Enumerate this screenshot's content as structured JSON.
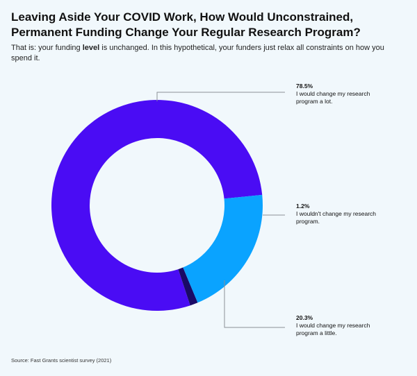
{
  "title": "Leaving Aside Your COVID Work, How Would Unconstrained, Permanent Funding Change Your Regular Research Program?",
  "subtitle": {
    "before": "That is: your funding ",
    "bold": "level",
    "after": " is unchanged. In this hypothetical, your funders just relax all constraints on how you spend it."
  },
  "source": "Source: Fast Grants scientist survey (2021)",
  "chart_data": {
    "type": "pie",
    "donut": true,
    "slices": [
      {
        "label": "I would change my research program a lot.",
        "value": 78.5,
        "value_label": "78.5%",
        "color": "#4a0cf4"
      },
      {
        "label": "I wouldn't change my research program.",
        "value": 1.2,
        "value_label": "1.2%",
        "color": "#1a0a66"
      },
      {
        "label": "I would change my research program a little.",
        "value": 20.3,
        "value_label": "20.3%",
        "color": "#0aa3ff"
      }
    ]
  }
}
